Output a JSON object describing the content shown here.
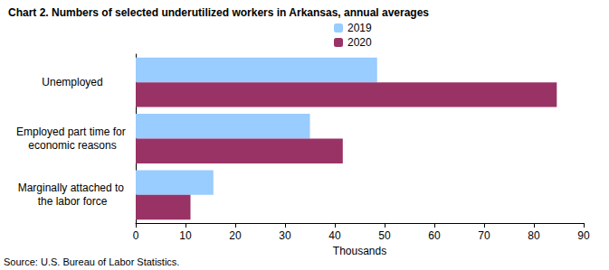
{
  "chart_data": {
    "type": "bar",
    "orientation": "horizontal",
    "title": "Chart 2. Numbers of selected underutilized workers in Arkansas, annual averages",
    "annotations": [
      "Source: U.S. Bureau of Labor Statistics."
    ],
    "xlabel": "Thousands",
    "categories": [
      "Unemployed",
      "Employed part time for economic reasons",
      "Marginally attached to the labor force"
    ],
    "series": [
      {
        "name": "2019",
        "color": "#99ccff",
        "values": [
          48.5,
          35.0,
          15.6
        ]
      },
      {
        "name": "2020",
        "color": "#993366",
        "values": [
          84.6,
          41.6,
          11.0
        ]
      }
    ],
    "xlim": [
      0,
      90
    ],
    "xticks": [
      0,
      10,
      20,
      30,
      40,
      50,
      60,
      70,
      80,
      90
    ],
    "grid": false,
    "legend": "top"
  }
}
